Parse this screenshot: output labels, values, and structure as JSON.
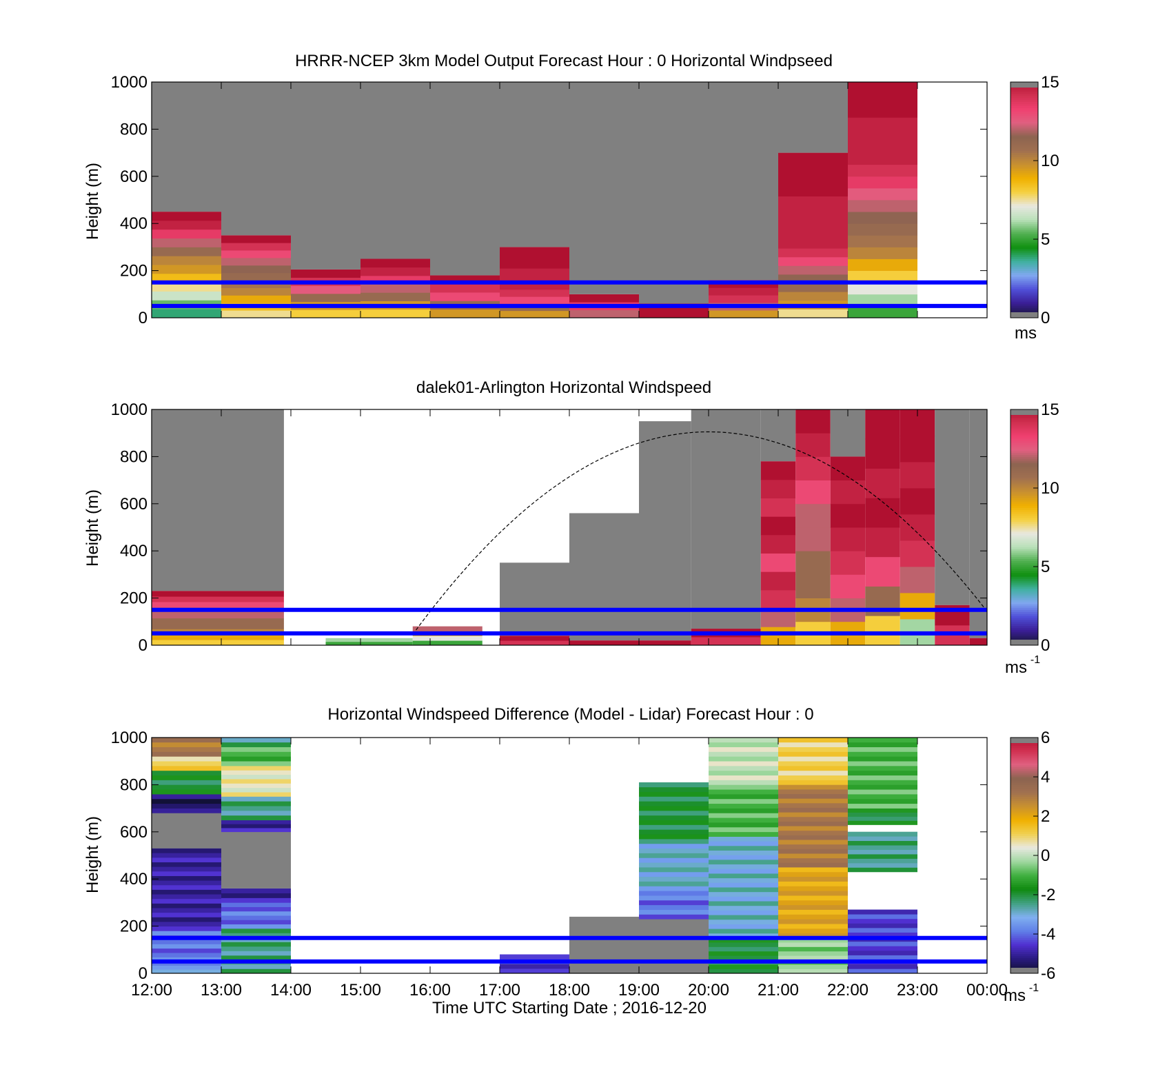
{
  "colors": {
    "missing_gray": "#808080",
    "height_lines": "#0000ff",
    "solar_curve": "#000000",
    "speed_colormap": [
      "#161631",
      "#3a1e96",
      "#5050d8",
      "#80a8f0",
      "#40b0a0",
      "#109010",
      "#50b050",
      "#b8e0b8",
      "#e8e8e0",
      "#f5d040",
      "#f0b000",
      "#c89030",
      "#a07050",
      "#8c6450",
      "#e06080",
      "#f04070",
      "#d03050",
      "#b01030"
    ],
    "diff_colormap": [
      "#101030",
      "#2a1a80",
      "#5030d0",
      "#6080e8",
      "#80b0f0",
      "#40a080",
      "#108a10",
      "#40b040",
      "#a0d8a0",
      "#e8e8e0",
      "#f0d050",
      "#f0b000",
      "#c89030",
      "#a07050",
      "#8c6450",
      "#e06080",
      "#d03050",
      "#b01030"
    ]
  },
  "figure": {
    "time_axis_label": "Time UTC  Starting Date ; 2016-12-20"
  },
  "chart_data": [
    {
      "type": "heatmap",
      "title": "HRRR-NCEP 3km Model Output   Forecast Hour : 0 Horizontal Windpseed",
      "xlabel": "",
      "ylabel": "Height (m)",
      "xlim": [
        "12:00",
        "00:00"
      ],
      "ylim": [
        0,
        1000
      ],
      "yticks": [
        "0",
        "200",
        "400",
        "600",
        "800",
        "1000"
      ],
      "colorbar": {
        "ticks": [
          "0",
          "5",
          "10",
          "15"
        ],
        "range": [
          0,
          15
        ],
        "unit": "ms",
        "unit_sup": ""
      },
      "height_lines_m": [
        50,
        150
      ],
      "columns": [
        {
          "start": "12:00",
          "end": "13:00",
          "top": 450,
          "profile": [
            3.8,
            5.5,
            6.5,
            7.5,
            8.5,
            9.5,
            10,
            11,
            12,
            13.5,
            14.5,
            15
          ]
        },
        {
          "start": "13:00",
          "end": "14:00",
          "top": 350,
          "profile": [
            7.5,
            8.5,
            9,
            10,
            10.5,
            11,
            11.5,
            12,
            13,
            14,
            15
          ]
        },
        {
          "start": "14:00",
          "end": "15:00",
          "top": 205,
          "profile": [
            8,
            9.5,
            11,
            12.5,
            14,
            15
          ]
        },
        {
          "start": "15:00",
          "end": "16:00",
          "top": 250,
          "profile": [
            8,
            9.5,
            11,
            12,
            13.5,
            14.5,
            15
          ]
        },
        {
          "start": "16:00",
          "end": "17:00",
          "top": 180,
          "profile": [
            9.5,
            11,
            13,
            14,
            15
          ]
        },
        {
          "start": "17:00",
          "end": "18:00",
          "top": 300,
          "profile": [
            9.5,
            11,
            13,
            14,
            14.5,
            14.5,
            14.5,
            15,
            15,
            15
          ]
        },
        {
          "start": "18:00",
          "end": "19:00",
          "top": 100,
          "profile": [
            12,
            13.5,
            15
          ]
        },
        {
          "start": "19:00",
          "end": "20:00",
          "top": 60,
          "profile": [
            15
          ]
        },
        {
          "start": "20:00",
          "end": "21:00",
          "top": 160,
          "profile": [
            9.5,
            12,
            14,
            14.5,
            15
          ]
        },
        {
          "start": "21:00",
          "end": "22:00",
          "top": 700,
          "profile": [
            7.5,
            9.5,
            10,
            11,
            11.5,
            12,
            13,
            14,
            14.5,
            14.5,
            14.5,
            14.5,
            14.5,
            14.5,
            15,
            15,
            15,
            15,
            15
          ]
        },
        {
          "start": "22:00",
          "end": "23:00",
          "top": 1000,
          "profile": [
            5,
            6,
            7,
            8,
            9,
            10,
            10.5,
            11,
            11.5,
            12,
            12.5,
            13.5,
            14,
            14.5,
            14.5,
            14.5,
            14.5,
            15,
            15,
            15
          ]
        }
      ]
    },
    {
      "type": "heatmap",
      "title": "dalek01-Arlington  Horizontal Windspeed",
      "xlabel": "",
      "ylabel": "Height (m)",
      "xlim": [
        "12:00",
        "00:00"
      ],
      "ylim": [
        0,
        1000
      ],
      "yticks": [
        "0",
        "200",
        "400",
        "600",
        "800",
        "1000"
      ],
      "colorbar": {
        "ticks": [
          "0",
          "5",
          "10",
          "15"
        ],
        "range": [
          0,
          15
        ],
        "unit": "ms",
        "unit_sup": "-1"
      },
      "height_lines_m": [
        50,
        150
      ],
      "solar_curve": {
        "start": "15:45",
        "end": "00:00",
        "peak_time": "20:00",
        "peak_height_m": 905
      },
      "columns": [
        {
          "start": "12:00",
          "end": "13:54",
          "top": 1000,
          "data_top": 230,
          "profile": [
            8,
            9,
            10,
            11,
            11,
            12,
            12,
            13,
            14,
            15
          ]
        },
        {
          "start": "14:30",
          "end": "15:45",
          "top": 30,
          "data_top": 30,
          "profile": [
            5,
            6
          ]
        },
        {
          "start": "15:45",
          "end": "16:45",
          "top": 80,
          "data_top": 80,
          "profile": [
            5,
            7,
            9,
            12
          ]
        },
        {
          "start": "17:00",
          "end": "18:00",
          "top": 350,
          "data_top": 40,
          "profile": [
            14,
            15
          ]
        },
        {
          "start": "18:00",
          "end": "19:00",
          "top": 560,
          "data_top": 20,
          "profile": [
            15
          ]
        },
        {
          "start": "19:00",
          "end": "19:45",
          "top": 950,
          "data_top": 20,
          "profile": [
            15
          ]
        },
        {
          "start": "19:45",
          "end": "20:45",
          "top": 1000,
          "data_top": 70,
          "profile": [
            14,
            15
          ]
        },
        {
          "start": "20:45",
          "end": "21:15",
          "top": 1000,
          "data_top": 780,
          "profile": [
            9,
            12,
            14,
            14.5,
            13,
            14.5,
            15,
            14,
            14.5,
            15
          ]
        },
        {
          "start": "21:15",
          "end": "21:45",
          "top": 1000,
          "data_top": 1000,
          "profile": [
            8,
            10,
            11,
            11,
            12,
            12,
            13,
            14,
            14.5,
            15
          ]
        },
        {
          "start": "21:45",
          "end": "22:15",
          "top": 1000,
          "data_top": 800,
          "profile": [
            9,
            12,
            13,
            14,
            14.5,
            15,
            14.5,
            15
          ]
        },
        {
          "start": "22:15",
          "end": "22:45",
          "top": 1000,
          "data_top": 1000,
          "profile": [
            8,
            11,
            13,
            14.5,
            15,
            14.5,
            15,
            15
          ]
        },
        {
          "start": "22:45",
          "end": "23:15",
          "top": 1000,
          "data_top": 1000,
          "profile": [
            6,
            9,
            12,
            14,
            14.5,
            15,
            14.5,
            15,
            15
          ]
        },
        {
          "start": "23:15",
          "end": "23:45",
          "top": 1000,
          "data_top": 170,
          "profile": [
            14,
            15
          ]
        },
        {
          "start": "23:45",
          "end": "00:00",
          "top": 1000,
          "data_top": 30,
          "profile": [
            15
          ]
        }
      ]
    },
    {
      "type": "heatmap",
      "title": "Horizontal Windspeed Difference (Model - Lidar) Forecast Hour : 0",
      "xlabel": "Time UTC  Starting Date ; 2016-12-20",
      "ylabel": "Height (m)",
      "xlim": [
        "12:00",
        "00:00"
      ],
      "xticks": [
        "12:00",
        "13:00",
        "14:00",
        "15:00",
        "16:00",
        "17:00",
        "18:00",
        "19:00",
        "20:00",
        "21:00",
        "22:00",
        "23:00",
        "00:00"
      ],
      "ylim": [
        0,
        1000
      ],
      "yticks": [
        "0",
        "200",
        "400",
        "600",
        "800",
        "1000"
      ],
      "colorbar": {
        "ticks": [
          "-6",
          "-4",
          "-2",
          "0",
          "2",
          "4",
          "6"
        ],
        "range": [
          -6,
          6
        ],
        "unit": "ms",
        "unit_sup": "-1"
      },
      "height_lines_m": [
        50,
        150
      ],
      "columns": [
        {
          "start": "12:00",
          "end": "13:00",
          "top": 1000,
          "bands": [
            [
              0,
              50,
              -3.5
            ],
            [
              50,
              180,
              -4
            ],
            [
              180,
              530,
              -5
            ],
            [
              530,
              680,
              null
            ],
            [
              680,
              760,
              -5.5
            ],
            [
              760,
              860,
              -2
            ],
            [
              860,
              920,
              1
            ],
            [
              920,
              1000,
              3
            ]
          ]
        },
        {
          "start": "13:00",
          "end": "14:00",
          "top": 1000,
          "bands": [
            [
              0,
              190,
              -2.5
            ],
            [
              190,
              300,
              -4
            ],
            [
              300,
              360,
              -5
            ],
            [
              360,
              600,
              null
            ],
            [
              600,
              650,
              -5
            ],
            [
              650,
              750,
              -2.5
            ],
            [
              750,
              880,
              0.5
            ],
            [
              880,
              960,
              -1
            ],
            [
              960,
              1000,
              -2.5
            ]
          ]
        },
        {
          "start": "17:00",
          "end": "18:00",
          "top": 80,
          "bands": [
            [
              0,
              80,
              -4.5
            ]
          ]
        },
        {
          "start": "18:00",
          "end": "19:00",
          "top": 240,
          "bands": [
            [
              0,
              240,
              null
            ]
          ]
        },
        {
          "start": "19:00",
          "end": "20:00",
          "top": 810,
          "bands": [
            [
              0,
              230,
              null
            ],
            [
              230,
              350,
              -4
            ],
            [
              350,
              550,
              -3
            ],
            [
              550,
              810,
              -2
            ]
          ]
        },
        {
          "start": "20:00",
          "end": "21:00",
          "top": 1000,
          "bands": [
            [
              0,
              150,
              -2
            ],
            [
              150,
              580,
              -3
            ],
            [
              580,
              800,
              -1
            ],
            [
              800,
              1000,
              0
            ]
          ]
        },
        {
          "start": "21:00",
          "end": "22:00",
          "top": 1000,
          "bands": [
            [
              0,
              150,
              -0.5
            ],
            [
              150,
              450,
              2
            ],
            [
              450,
              800,
              3
            ],
            [
              800,
              1000,
              1
            ]
          ]
        },
        {
          "start": "22:00",
          "end": "23:00",
          "top": 1000,
          "bands": [
            [
              0,
              270,
              -4.5
            ],
            [
              430,
              600,
              -2.5
            ],
            [
              630,
              700,
              -2
            ],
            [
              700,
              1000,
              -1
            ]
          ]
        }
      ]
    }
  ]
}
